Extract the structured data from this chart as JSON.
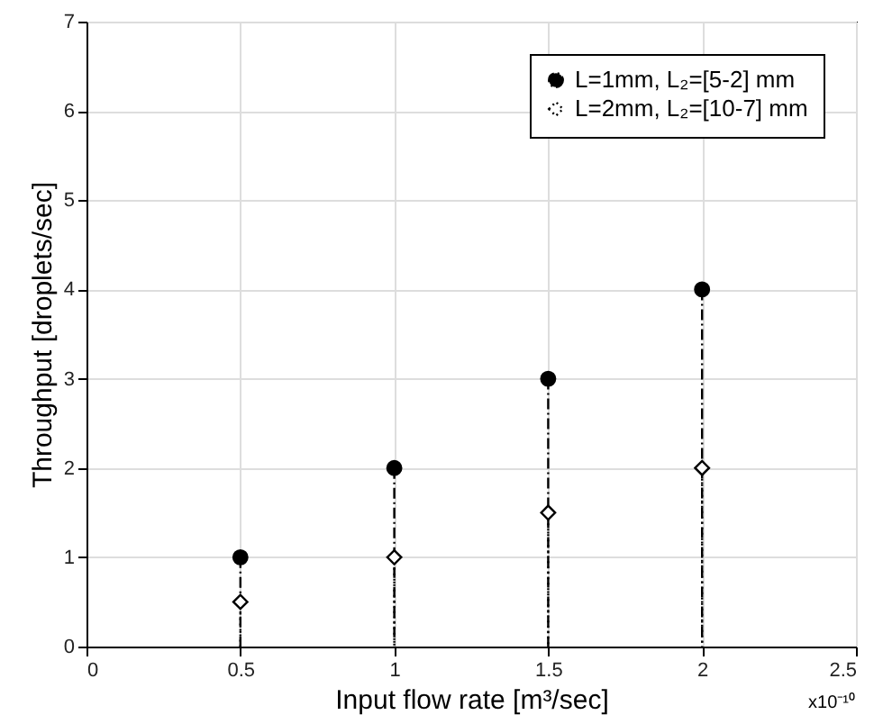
{
  "chart_data": {
    "type": "lollipop",
    "xlabel": "Input flow rate  [m³/sec]",
    "ylabel": "Throughput [droplets/sec]",
    "x": [
      0.5,
      1,
      1.5,
      2
    ],
    "series": [
      {
        "name": "L=1mm, L₂=[5-2] mm",
        "color": "#000000",
        "values": [
          1,
          2,
          3,
          4
        ],
        "marker": "circle",
        "line_style": "dashed"
      },
      {
        "name": "L=2mm, L₂=[10-7] mm",
        "color": "#000000",
        "values": [
          0.5,
          1,
          1.5,
          2
        ],
        "marker": "diamond",
        "line_style": "dotted"
      }
    ],
    "xlim": [
      0,
      2.5
    ],
    "xticks": [
      0,
      0.5,
      1,
      1.5,
      2,
      2.5
    ],
    "ylim": [
      0,
      7
    ],
    "yticks": [
      0,
      1,
      2,
      3,
      4,
      5,
      6,
      7
    ],
    "annotations": [
      "x10⁻¹⁰"
    ],
    "grid": true,
    "legend": "top right"
  }
}
